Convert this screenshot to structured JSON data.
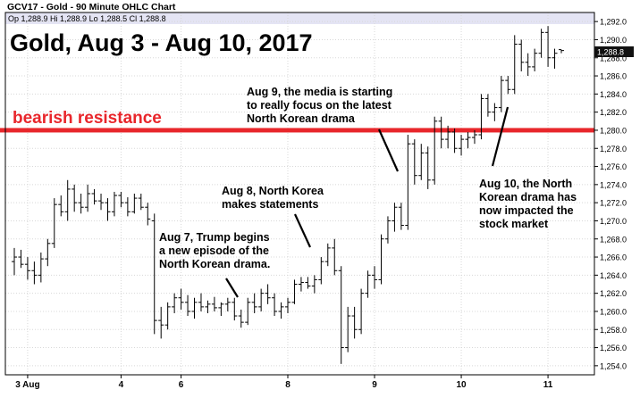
{
  "header": {
    "symbol_title": "GCV17 - Gold - 90 Minute OHLC Chart",
    "quote": "Op 1,288.9  Hi 1,288.9  Lo 1,288.5  Cl 1,288.8"
  },
  "chart_data": {
    "type": "ohlc",
    "title": "Gold, Aug 3 - Aug 10, 2017",
    "xlabel": "",
    "ylabel": "",
    "ylim": [
      1253,
      1293
    ],
    "y_ticks": [
      "1,254.0",
      "1,256.0",
      "1,258.0",
      "1,260.0",
      "1,262.0",
      "1,264.0",
      "1,266.0",
      "1,268.0",
      "1,270.0",
      "1,272.0",
      "1,274.0",
      "1,276.0",
      "1,278.0",
      "1,280.0",
      "1,282.0",
      "1,284.0",
      "1,286.0",
      "1,288.0",
      "1,290.0",
      "1,292.0"
    ],
    "x_ticks": [
      {
        "label": "3 Aug",
        "bar": 2
      },
      {
        "label": "4",
        "bar": 16
      },
      {
        "label": "6",
        "bar": 25
      },
      {
        "label": "8",
        "bar": 41
      },
      {
        "label": "9",
        "bar": 54
      },
      {
        "label": "10",
        "bar": 67
      },
      {
        "label": "11",
        "bar": 80
      }
    ],
    "last_price": "1,288.8",
    "resistance": {
      "value": 1280.0,
      "label": "bearish resistance",
      "color": "#e8262b"
    },
    "colors": {
      "bars": "#000000",
      "grid": "#d8d8d8",
      "top_band": "#e4e4f4",
      "last_box": "#111111"
    },
    "bars": [
      {
        "o": 1265.5,
        "h": 1267.0,
        "l": 1264.0,
        "c": 1266.0
      },
      {
        "o": 1266.0,
        "h": 1266.8,
        "l": 1264.8,
        "c": 1265.2
      },
      {
        "o": 1265.2,
        "h": 1266.0,
        "l": 1263.5,
        "c": 1264.5
      },
      {
        "o": 1264.5,
        "h": 1265.5,
        "l": 1263.0,
        "c": 1264.0
      },
      {
        "o": 1264.0,
        "h": 1266.5,
        "l": 1263.2,
        "c": 1265.8
      },
      {
        "o": 1265.8,
        "h": 1268.0,
        "l": 1265.0,
        "c": 1267.5
      },
      {
        "o": 1267.5,
        "h": 1272.5,
        "l": 1267.0,
        "c": 1271.8
      },
      {
        "o": 1271.8,
        "h": 1272.8,
        "l": 1270.5,
        "c": 1271.0
      },
      {
        "o": 1271.0,
        "h": 1274.5,
        "l": 1270.0,
        "c": 1273.5
      },
      {
        "o": 1273.5,
        "h": 1274.0,
        "l": 1271.0,
        "c": 1272.0
      },
      {
        "o": 1272.0,
        "h": 1273.0,
        "l": 1270.8,
        "c": 1271.5
      },
      {
        "o": 1271.5,
        "h": 1274.0,
        "l": 1271.0,
        "c": 1273.0
      },
      {
        "o": 1273.0,
        "h": 1273.5,
        "l": 1271.8,
        "c": 1272.2
      },
      {
        "o": 1272.2,
        "h": 1273.0,
        "l": 1271.2,
        "c": 1272.0
      },
      {
        "o": 1272.0,
        "h": 1272.5,
        "l": 1270.0,
        "c": 1271.0
      },
      {
        "o": 1271.0,
        "h": 1273.2,
        "l": 1270.5,
        "c": 1272.8
      },
      {
        "o": 1272.8,
        "h": 1273.2,
        "l": 1271.5,
        "c": 1272.0
      },
      {
        "o": 1272.0,
        "h": 1272.6,
        "l": 1270.5,
        "c": 1271.0
      },
      {
        "o": 1271.0,
        "h": 1273.0,
        "l": 1270.8,
        "c": 1272.5
      },
      {
        "o": 1272.5,
        "h": 1273.0,
        "l": 1271.2,
        "c": 1271.5
      },
      {
        "o": 1271.5,
        "h": 1272.0,
        "l": 1269.5,
        "c": 1270.2
      },
      {
        "o": 1270.0,
        "h": 1270.8,
        "l": 1257.5,
        "c": 1259.0
      },
      {
        "o": 1259.0,
        "h": 1260.5,
        "l": 1257.0,
        "c": 1258.5
      },
      {
        "o": 1258.5,
        "h": 1261.0,
        "l": 1258.0,
        "c": 1260.5
      },
      {
        "o": 1260.5,
        "h": 1262.0,
        "l": 1259.8,
        "c": 1261.5
      },
      {
        "o": 1261.5,
        "h": 1262.5,
        "l": 1260.2,
        "c": 1261.0
      },
      {
        "o": 1261.0,
        "h": 1261.8,
        "l": 1259.5,
        "c": 1260.0
      },
      {
        "o": 1260.0,
        "h": 1261.5,
        "l": 1259.2,
        "c": 1261.0
      },
      {
        "o": 1261.0,
        "h": 1262.0,
        "l": 1260.0,
        "c": 1260.5
      },
      {
        "o": 1260.5,
        "h": 1261.2,
        "l": 1259.8,
        "c": 1260.8
      },
      {
        "o": 1260.8,
        "h": 1261.6,
        "l": 1260.0,
        "c": 1260.4
      },
      {
        "o": 1260.4,
        "h": 1261.0,
        "l": 1259.5,
        "c": 1260.8
      },
      {
        "o": 1260.8,
        "h": 1261.5,
        "l": 1260.0,
        "c": 1261.0
      },
      {
        "o": 1261.0,
        "h": 1261.5,
        "l": 1259.0,
        "c": 1259.5
      },
      {
        "o": 1259.5,
        "h": 1260.2,
        "l": 1258.2,
        "c": 1258.8
      },
      {
        "o": 1258.8,
        "h": 1261.5,
        "l": 1258.5,
        "c": 1261.0
      },
      {
        "o": 1261.0,
        "h": 1262.0,
        "l": 1259.8,
        "c": 1260.5
      },
      {
        "o": 1260.5,
        "h": 1262.5,
        "l": 1260.0,
        "c": 1262.0
      },
      {
        "o": 1262.0,
        "h": 1263.0,
        "l": 1260.8,
        "c": 1261.5
      },
      {
        "o": 1261.5,
        "h": 1262.0,
        "l": 1259.5,
        "c": 1260.0
      },
      {
        "o": 1260.0,
        "h": 1261.0,
        "l": 1259.2,
        "c": 1260.5
      },
      {
        "o": 1260.5,
        "h": 1261.5,
        "l": 1259.8,
        "c": 1261.0
      },
      {
        "o": 1261.0,
        "h": 1263.5,
        "l": 1260.8,
        "c": 1263.0
      },
      {
        "o": 1263.0,
        "h": 1263.8,
        "l": 1262.2,
        "c": 1263.2
      },
      {
        "o": 1263.2,
        "h": 1263.8,
        "l": 1262.5,
        "c": 1262.8
      },
      {
        "o": 1262.8,
        "h": 1264.0,
        "l": 1262.0,
        "c": 1263.5
      },
      {
        "o": 1263.5,
        "h": 1266.0,
        "l": 1263.0,
        "c": 1265.5
      },
      {
        "o": 1265.5,
        "h": 1267.5,
        "l": 1265.0,
        "c": 1267.0
      },
      {
        "o": 1267.0,
        "h": 1268.0,
        "l": 1264.0,
        "c": 1264.5
      },
      {
        "o": 1264.5,
        "h": 1265.0,
        "l": 1254.2,
        "c": 1256.0
      },
      {
        "o": 1256.0,
        "h": 1260.5,
        "l": 1255.5,
        "c": 1259.5
      },
      {
        "o": 1259.5,
        "h": 1260.5,
        "l": 1257.0,
        "c": 1258.0
      },
      {
        "o": 1258.0,
        "h": 1262.5,
        "l": 1257.5,
        "c": 1262.0
      },
      {
        "o": 1262.0,
        "h": 1264.5,
        "l": 1261.5,
        "c": 1264.0
      },
      {
        "o": 1264.0,
        "h": 1265.0,
        "l": 1262.5,
        "c": 1263.5
      },
      {
        "o": 1263.5,
        "h": 1268.5,
        "l": 1263.0,
        "c": 1268.0
      },
      {
        "o": 1268.0,
        "h": 1270.5,
        "l": 1267.5,
        "c": 1270.0
      },
      {
        "o": 1270.0,
        "h": 1272.0,
        "l": 1268.8,
        "c": 1271.5
      },
      {
        "o": 1271.5,
        "h": 1272.0,
        "l": 1269.0,
        "c": 1269.5
      },
      {
        "o": 1269.5,
        "h": 1279.5,
        "l": 1269.0,
        "c": 1278.5
      },
      {
        "o": 1278.5,
        "h": 1279.0,
        "l": 1274.0,
        "c": 1275.0
      },
      {
        "o": 1275.0,
        "h": 1278.5,
        "l": 1274.5,
        "c": 1277.5
      },
      {
        "o": 1277.5,
        "h": 1278.2,
        "l": 1273.5,
        "c": 1274.5
      },
      {
        "o": 1274.5,
        "h": 1281.5,
        "l": 1274.0,
        "c": 1281.0
      },
      {
        "o": 1281.0,
        "h": 1281.5,
        "l": 1278.0,
        "c": 1279.0
      },
      {
        "o": 1279.0,
        "h": 1280.5,
        "l": 1278.0,
        "c": 1279.8
      },
      {
        "o": 1279.8,
        "h": 1280.2,
        "l": 1277.5,
        "c": 1278.0
      },
      {
        "o": 1278.0,
        "h": 1279.5,
        "l": 1277.2,
        "c": 1279.0
      },
      {
        "o": 1279.0,
        "h": 1279.8,
        "l": 1278.0,
        "c": 1279.2
      },
      {
        "o": 1279.2,
        "h": 1280.0,
        "l": 1278.5,
        "c": 1279.5
      },
      {
        "o": 1279.5,
        "h": 1284.0,
        "l": 1279.0,
        "c": 1283.5
      },
      {
        "o": 1283.5,
        "h": 1284.0,
        "l": 1281.5,
        "c": 1282.0
      },
      {
        "o": 1282.0,
        "h": 1283.0,
        "l": 1281.0,
        "c": 1282.5
      },
      {
        "o": 1282.5,
        "h": 1286.0,
        "l": 1282.0,
        "c": 1285.5
      },
      {
        "o": 1285.5,
        "h": 1286.0,
        "l": 1284.0,
        "c": 1284.5
      },
      {
        "o": 1284.5,
        "h": 1290.5,
        "l": 1284.0,
        "c": 1289.5
      },
      {
        "o": 1289.5,
        "h": 1290.0,
        "l": 1286.5,
        "c": 1287.5
      },
      {
        "o": 1287.5,
        "h": 1288.5,
        "l": 1286.0,
        "c": 1287.0
      },
      {
        "o": 1287.0,
        "h": 1289.0,
        "l": 1286.5,
        "c": 1288.5
      },
      {
        "o": 1288.5,
        "h": 1291.2,
        "l": 1288.0,
        "c": 1290.8
      },
      {
        "o": 1290.8,
        "h": 1291.5,
        "l": 1287.0,
        "c": 1288.0
      },
      {
        "o": 1288.0,
        "h": 1289.0,
        "l": 1286.8,
        "c": 1288.5
      },
      {
        "o": 1288.9,
        "h": 1288.9,
        "l": 1288.5,
        "c": 1288.8
      }
    ],
    "annotations": [
      {
        "id": "aug7",
        "lines": [
          "Aug 7, Trump begins",
          "a new episode of the",
          "North Korean drama."
        ],
        "x": 178,
        "y": 270,
        "arrow": [
          [
            253,
            312
          ],
          [
            266,
            333
          ]
        ]
      },
      {
        "id": "aug8",
        "lines": [
          "Aug 8, North Korea",
          "makes statements"
        ],
        "x": 248,
        "y": 218,
        "arrow": [
          [
            330,
            240
          ],
          [
            347,
            277
          ]
        ]
      },
      {
        "id": "aug9",
        "lines": [
          "Aug 9, the media is starting",
          "to really focus on the latest",
          "North Korean drama"
        ],
        "x": 276,
        "y": 107,
        "arrow": [
          [
            424,
            145
          ],
          [
            445,
            192
          ]
        ]
      },
      {
        "id": "aug10",
        "lines": [
          "Aug 10, the North",
          "Korean drama has",
          "now impacted the",
          "stock market"
        ],
        "x": 536,
        "y": 210,
        "arrow": [
          [
            568,
            120
          ],
          [
            551,
            186
          ]
        ]
      }
    ]
  }
}
